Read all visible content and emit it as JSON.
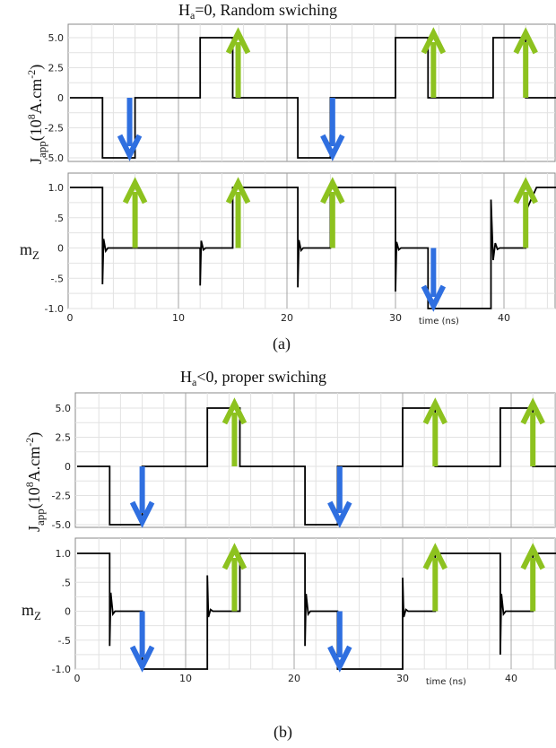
{
  "colors": {
    "trace": "#000000",
    "up_arrow": "#8dc21f",
    "down_arrow": "#2f6fe0",
    "grid_minor": "#e2e2e2",
    "grid_major": "#a5a5a5",
    "frame": "#888888"
  },
  "panel_a": {
    "title_main": "H",
    "title_sub": "a",
    "title_rest": "=0, Random swiching",
    "caption": "(a)"
  },
  "panel_b": {
    "title_main": "H",
    "title_sub": "a",
    "title_rest": "<0, proper swiching",
    "caption": "(b)"
  },
  "ylabel_j": {
    "main": "J",
    "sub": "app",
    "rest_open": "(10",
    "sup8": "8",
    "rest_mid": "A.cm",
    "sup_neg2": "-2",
    "rest_close": ")"
  },
  "ylabel_m": {
    "main": "m",
    "sub": "Z"
  },
  "chart_data": [
    {
      "type": "line",
      "panel": "(a) top",
      "title": "Ha=0, Random swiching",
      "ylabel": "Japp(10^8 A.cm^-2)",
      "xlim": [
        0,
        46
      ],
      "ylim": [
        -5,
        5
      ],
      "yticks": [
        "5.0",
        "2.5",
        "0",
        "-2.5",
        "-5.0"
      ],
      "ytick_values": [
        5,
        2.5,
        0,
        -2.5,
        -5
      ],
      "series": [
        {
          "x": [
            0,
            3,
            3,
            6,
            6,
            12,
            12,
            15,
            15,
            21,
            21,
            24,
            24,
            30,
            30,
            33,
            33,
            39,
            39,
            42,
            42,
            46
          ],
          "values": [
            0,
            0,
            -5,
            -5,
            0,
            0,
            5,
            5,
            0,
            0,
            -5,
            -5,
            0,
            0,
            5,
            5,
            0,
            0,
            5,
            5,
            0,
            0
          ]
        }
      ],
      "arrows_up_x": [
        15.5,
        33.5,
        42
      ],
      "arrows_down_x": [
        5.5,
        24.2
      ]
    },
    {
      "type": "line",
      "panel": "(a) bottom",
      "ylabel": "mZ",
      "xlabel": "time (ns)",
      "xlim": [
        0,
        46
      ],
      "xticks": [
        "0",
        "10",
        "20",
        "30",
        "40"
      ],
      "xtick_values": [
        0,
        10,
        20,
        30,
        40
      ],
      "ylim": [
        -1,
        1.1
      ],
      "yticks": [
        "1.0",
        ".5",
        "0",
        "-.5",
        "-1.0"
      ],
      "ytick_values": [
        1,
        0.5,
        0,
        -0.5,
        -1
      ],
      "series": [
        {
          "x": [
            0,
            3,
            3,
            3.1,
            3.3,
            3.5,
            6,
            12,
            12,
            12.1,
            12.3,
            12.5,
            15,
            15,
            21,
            21,
            21.1,
            21.3,
            21.5,
            24,
            24,
            30,
            30,
            30.1,
            30.3,
            30.5,
            33,
            33,
            38.8,
            38.8,
            39,
            39.2,
            39.4,
            39.6,
            42,
            42,
            43,
            46
          ],
          "values": [
            1,
            1,
            -0.6,
            0.15,
            -0.05,
            0,
            0,
            0,
            -0.62,
            0.12,
            -0.03,
            0,
            0,
            1,
            1,
            -0.65,
            0.13,
            -0.04,
            0,
            0,
            1,
            1,
            -0.72,
            0.1,
            -0.03,
            0,
            0,
            -1,
            -1,
            0.8,
            -0.2,
            0.08,
            -0.02,
            0,
            0,
            0.6,
            1,
            1
          ]
        }
      ],
      "arrows_up_x": [
        6,
        15.5,
        24.2,
        42
      ],
      "arrows_down_x": [
        33.5
      ]
    },
    {
      "type": "line",
      "panel": "(b) top",
      "title": "Ha<0, proper swiching",
      "ylabel": "Japp(10^8 A.cm^-2)",
      "xlim": [
        0,
        46
      ],
      "ylim": [
        -5,
        5
      ],
      "yticks": [
        "5.0",
        "2.5",
        "0",
        "-2.5",
        "-5.0"
      ],
      "ytick_values": [
        5,
        2.5,
        0,
        -2.5,
        -5
      ],
      "series": [
        {
          "x": [
            0,
            3,
            3,
            6,
            6,
            12,
            12,
            15,
            15,
            21,
            21,
            24,
            24,
            30,
            30,
            33,
            33,
            39,
            39,
            42,
            42,
            46
          ],
          "values": [
            0,
            0,
            -5,
            -5,
            0,
            0,
            5,
            5,
            0,
            0,
            -5,
            -5,
            0,
            0,
            5,
            5,
            0,
            0,
            5,
            5,
            0,
            0
          ]
        }
      ],
      "arrows_up_x": [
        14.5,
        33,
        42
      ],
      "arrows_down_x": [
        6,
        24.2
      ]
    },
    {
      "type": "line",
      "panel": "(b) bottom",
      "ylabel": "mZ",
      "xlabel": "time (ns)",
      "xlim": [
        0,
        46
      ],
      "xticks": [
        "0",
        "10",
        "20",
        "30",
        "40"
      ],
      "xtick_values": [
        0,
        10,
        20,
        30,
        40
      ],
      "ylim": [
        -1,
        1.1
      ],
      "yticks": [
        "1.0",
        ".5",
        "0",
        "-.5",
        "-1.0"
      ],
      "ytick_values": [
        1,
        0.5,
        0,
        -0.5,
        -1
      ],
      "series": [
        {
          "x": [
            0,
            3,
            3,
            3.1,
            3.3,
            3.5,
            6,
            6,
            12,
            12,
            12.1,
            12.3,
            12.5,
            15,
            15,
            21,
            21,
            21.1,
            21.3,
            21.5,
            24,
            24,
            30,
            30,
            30.1,
            30.3,
            30.5,
            33,
            33,
            39,
            39,
            39.1,
            39.3,
            39.5,
            42,
            42,
            46
          ],
          "values": [
            1,
            1,
            -0.6,
            0.32,
            -0.05,
            0,
            0,
            -1,
            -1,
            0.62,
            -0.1,
            0.03,
            0,
            0,
            1,
            1,
            -0.6,
            0.3,
            -0.05,
            0,
            0,
            -1,
            -1,
            0.58,
            -0.1,
            0.03,
            0,
            0,
            1,
            1,
            -0.75,
            0.3,
            -0.05,
            0,
            0,
            1,
            1
          ]
        }
      ],
      "arrows_up_x": [
        14.5,
        33,
        42
      ],
      "arrows_down_x": [
        6,
        24.2
      ]
    }
  ]
}
